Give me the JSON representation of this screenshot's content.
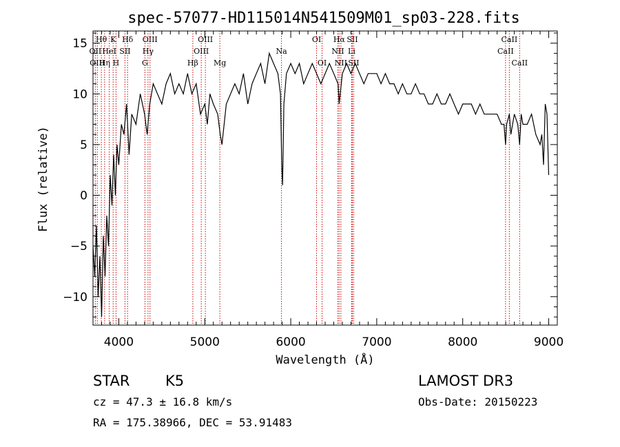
{
  "chart_data": {
    "type": "line",
    "title": "spec-57077-HD115014N541509M01_sp03-228.fits",
    "xlabel": "Wavelength (Å)",
    "ylabel": "Flux (relative)",
    "xlim": [
      3700,
      9100
    ],
    "ylim": [
      -12.8,
      16.2
    ],
    "x_ticks": [
      4000,
      5000,
      6000,
      7000,
      8000,
      9000
    ],
    "y_ticks": [
      -10,
      -5,
      0,
      5,
      10,
      15
    ],
    "x_minor_step": 100,
    "y_minor_step": 1,
    "series": [
      {
        "name": "flux",
        "x": [
          3700,
          3720,
          3740,
          3760,
          3780,
          3800,
          3820,
          3840,
          3860,
          3880,
          3900,
          3920,
          3940,
          3960,
          3980,
          4000,
          4030,
          4060,
          4090,
          4120,
          4150,
          4200,
          4250,
          4300,
          4330,
          4360,
          4400,
          4450,
          4500,
          4550,
          4600,
          4650,
          4700,
          4750,
          4800,
          4850,
          4900,
          4950,
          5000,
          5030,
          5060,
          5100,
          5150,
          5180,
          5200,
          5250,
          5300,
          5350,
          5400,
          5450,
          5500,
          5550,
          5600,
          5650,
          5700,
          5750,
          5800,
          5850,
          5880,
          5895,
          5905,
          5920,
          5950,
          6000,
          6050,
          6100,
          6150,
          6200,
          6250,
          6300,
          6350,
          6400,
          6450,
          6500,
          6550,
          6563,
          6600,
          6650,
          6700,
          6750,
          6800,
          6850,
          6900,
          6950,
          7000,
          7050,
          7100,
          7150,
          7200,
          7250,
          7300,
          7350,
          7400,
          7450,
          7500,
          7550,
          7600,
          7650,
          7700,
          7750,
          7800,
          7850,
          7900,
          7950,
          8000,
          8050,
          8100,
          8150,
          8200,
          8250,
          8300,
          8350,
          8400,
          8450,
          8480,
          8498,
          8510,
          8542,
          8560,
          8600,
          8640,
          8662,
          8680,
          8700,
          8750,
          8800,
          8850,
          8900,
          8920,
          8940,
          8960,
          8980,
          9000
        ],
        "y": [
          -5,
          -8,
          -3,
          -10,
          -6,
          -12,
          -4,
          -8,
          -2,
          -5,
          2,
          -1,
          4,
          0,
          5,
          3,
          7,
          6,
          9,
          4,
          8,
          7,
          10,
          8,
          6,
          9,
          11,
          10,
          9,
          11,
          12,
          10,
          11,
          10,
          12,
          10,
          11,
          8,
          9,
          7,
          10,
          9,
          8,
          6,
          5,
          9,
          10,
          11,
          10,
          12,
          9,
          11,
          12,
          13,
          11,
          14,
          13,
          12,
          10,
          3,
          1,
          9,
          12,
          13,
          12,
          13,
          11,
          12,
          13,
          12,
          11,
          12,
          13,
          12,
          11,
          9,
          12,
          13,
          12,
          13,
          12,
          11,
          12,
          12,
          12,
          11,
          12,
          11,
          11,
          10,
          11,
          10,
          10,
          11,
          10,
          10,
          9,
          9,
          10,
          9,
          9,
          10,
          9,
          8,
          9,
          9,
          9,
          8,
          9,
          8,
          8,
          8,
          8,
          7,
          7,
          5,
          7,
          8,
          6,
          8,
          7,
          5,
          8,
          7,
          7,
          8,
          6,
          5,
          6,
          3,
          9,
          8,
          2
        ]
      }
    ],
    "line_markers": [
      {
        "wavelength": 3727,
        "label": "OII",
        "row": 2
      },
      {
        "wavelength": 3750,
        "label": "OIII",
        "row": 3
      },
      {
        "wavelength": 3797,
        "label": "Hθ",
        "row": 1
      },
      {
        "wavelength": 3835,
        "label": "Hη",
        "row": 3
      },
      {
        "wavelength": 3889,
        "label": "HeI",
        "row": 2
      },
      {
        "wavelength": 3934,
        "label": "K",
        "row": 1
      },
      {
        "wavelength": 3968,
        "label": "H",
        "row": 3
      },
      {
        "wavelength": 4072,
        "label": "SII",
        "row": 2
      },
      {
        "wavelength": 4102,
        "label": "Hδ",
        "row": 1
      },
      {
        "wavelength": 4304,
        "label": "G",
        "row": 3
      },
      {
        "wavelength": 4340,
        "label": "Hγ",
        "row": 2
      },
      {
        "wavelength": 4363,
        "label": "OIII",
        "row": 1
      },
      {
        "wavelength": 4861,
        "label": "Hβ",
        "row": 3
      },
      {
        "wavelength": 4959,
        "label": "OIII",
        "row": 2
      },
      {
        "wavelength": 5007,
        "label": "OIII",
        "row": 1
      },
      {
        "wavelength": 5175,
        "label": "Mg",
        "row": 3
      },
      {
        "wavelength": 5892,
        "label": "Na",
        "row": 2
      },
      {
        "wavelength": 6300,
        "label": "OI",
        "row": 1
      },
      {
        "wavelength": 6364,
        "label": "OI",
        "row": 3
      },
      {
        "wavelength": 6548,
        "label": "NII",
        "row": 2
      },
      {
        "wavelength": 6563,
        "label": "Hα",
        "row": 1
      },
      {
        "wavelength": 6583,
        "label": "NII",
        "row": 3
      },
      {
        "wavelength": 6708,
        "label": "Li",
        "row": 2
      },
      {
        "wavelength": 6716,
        "label": "SII",
        "row": 1
      },
      {
        "wavelength": 6731,
        "label": "SII",
        "row": 3
      },
      {
        "wavelength": 8498,
        "label": "CaII",
        "row": 2
      },
      {
        "wavelength": 8542,
        "label": "CaII",
        "row": 1
      },
      {
        "wavelength": 8662,
        "label": "CaII",
        "row": 3
      }
    ],
    "marker_color": "#cc0000"
  },
  "info": {
    "object_class": "STAR",
    "subclass": "K5",
    "survey": "LAMOST DR3",
    "redshift_line": "cz = 47.3 ± 16.8 km/s",
    "obs_date_line": "Obs-Date: 20150223",
    "coords_line": "RA = 175.38966, DEC =  53.91483"
  }
}
